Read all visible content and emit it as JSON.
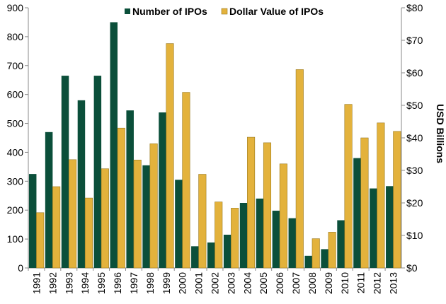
{
  "chart_data": {
    "type": "bar",
    "title": "",
    "categories": [
      "1991",
      "1992",
      "1993",
      "1994",
      "1995",
      "1996",
      "1997",
      "1998",
      "1999",
      "2000",
      "2001",
      "2002",
      "2003",
      "2004",
      "2005",
      "2006",
      "2007",
      "2008",
      "2009",
      "2010",
      "2011",
      "2012",
      "2013"
    ],
    "series": [
      {
        "name": "Number of IPOs",
        "axis": "left",
        "color": "#0b4f3a",
        "values": [
          325,
          470,
          665,
          580,
          665,
          850,
          545,
          355,
          538,
          305,
          75,
          88,
          115,
          225,
          240,
          198,
          172,
          42,
          65,
          165,
          380,
          275,
          283
        ]
      },
      {
        "name": "Dollar Value of IPOs",
        "axis": "right",
        "color": "#e3b23c",
        "values": [
          17,
          25,
          33.3,
          21.5,
          30.5,
          43,
          33.2,
          38.2,
          69,
          54,
          28.8,
          20.3,
          18.4,
          40.2,
          38.5,
          32,
          61,
          9,
          11,
          50.3,
          40,
          44.6,
          42
        ]
      }
    ],
    "y_left": {
      "min": 0,
      "max": 900,
      "step": 100,
      "ticks": [
        "0",
        "100",
        "200",
        "300",
        "400",
        "500",
        "600",
        "700",
        "800",
        "900"
      ],
      "label": ""
    },
    "y_right": {
      "min": 0,
      "max": 80,
      "step": 10,
      "ticks": [
        "$0",
        "$10",
        "$20",
        "$30",
        "$40",
        "$50",
        "$60",
        "$70",
        "$80"
      ],
      "label": "USD Billions"
    },
    "xlabel": "",
    "grid": false,
    "legend_position": "top"
  }
}
